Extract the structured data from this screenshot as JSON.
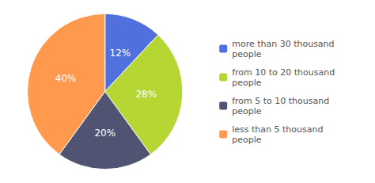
{
  "chart_data": {
    "type": "pie",
    "categories": [
      "more than 30 thousand\npeople",
      "from 10 to 20 thousand\npeople",
      "from 5 to 10 thousand\npeople",
      "less than 5 thousand\npeople"
    ],
    "values": [
      12,
      28,
      20,
      40
    ],
    "value_labels": [
      "12%",
      "28%",
      "20%",
      "40%"
    ],
    "data_labels": true,
    "legend": "right"
  }
}
